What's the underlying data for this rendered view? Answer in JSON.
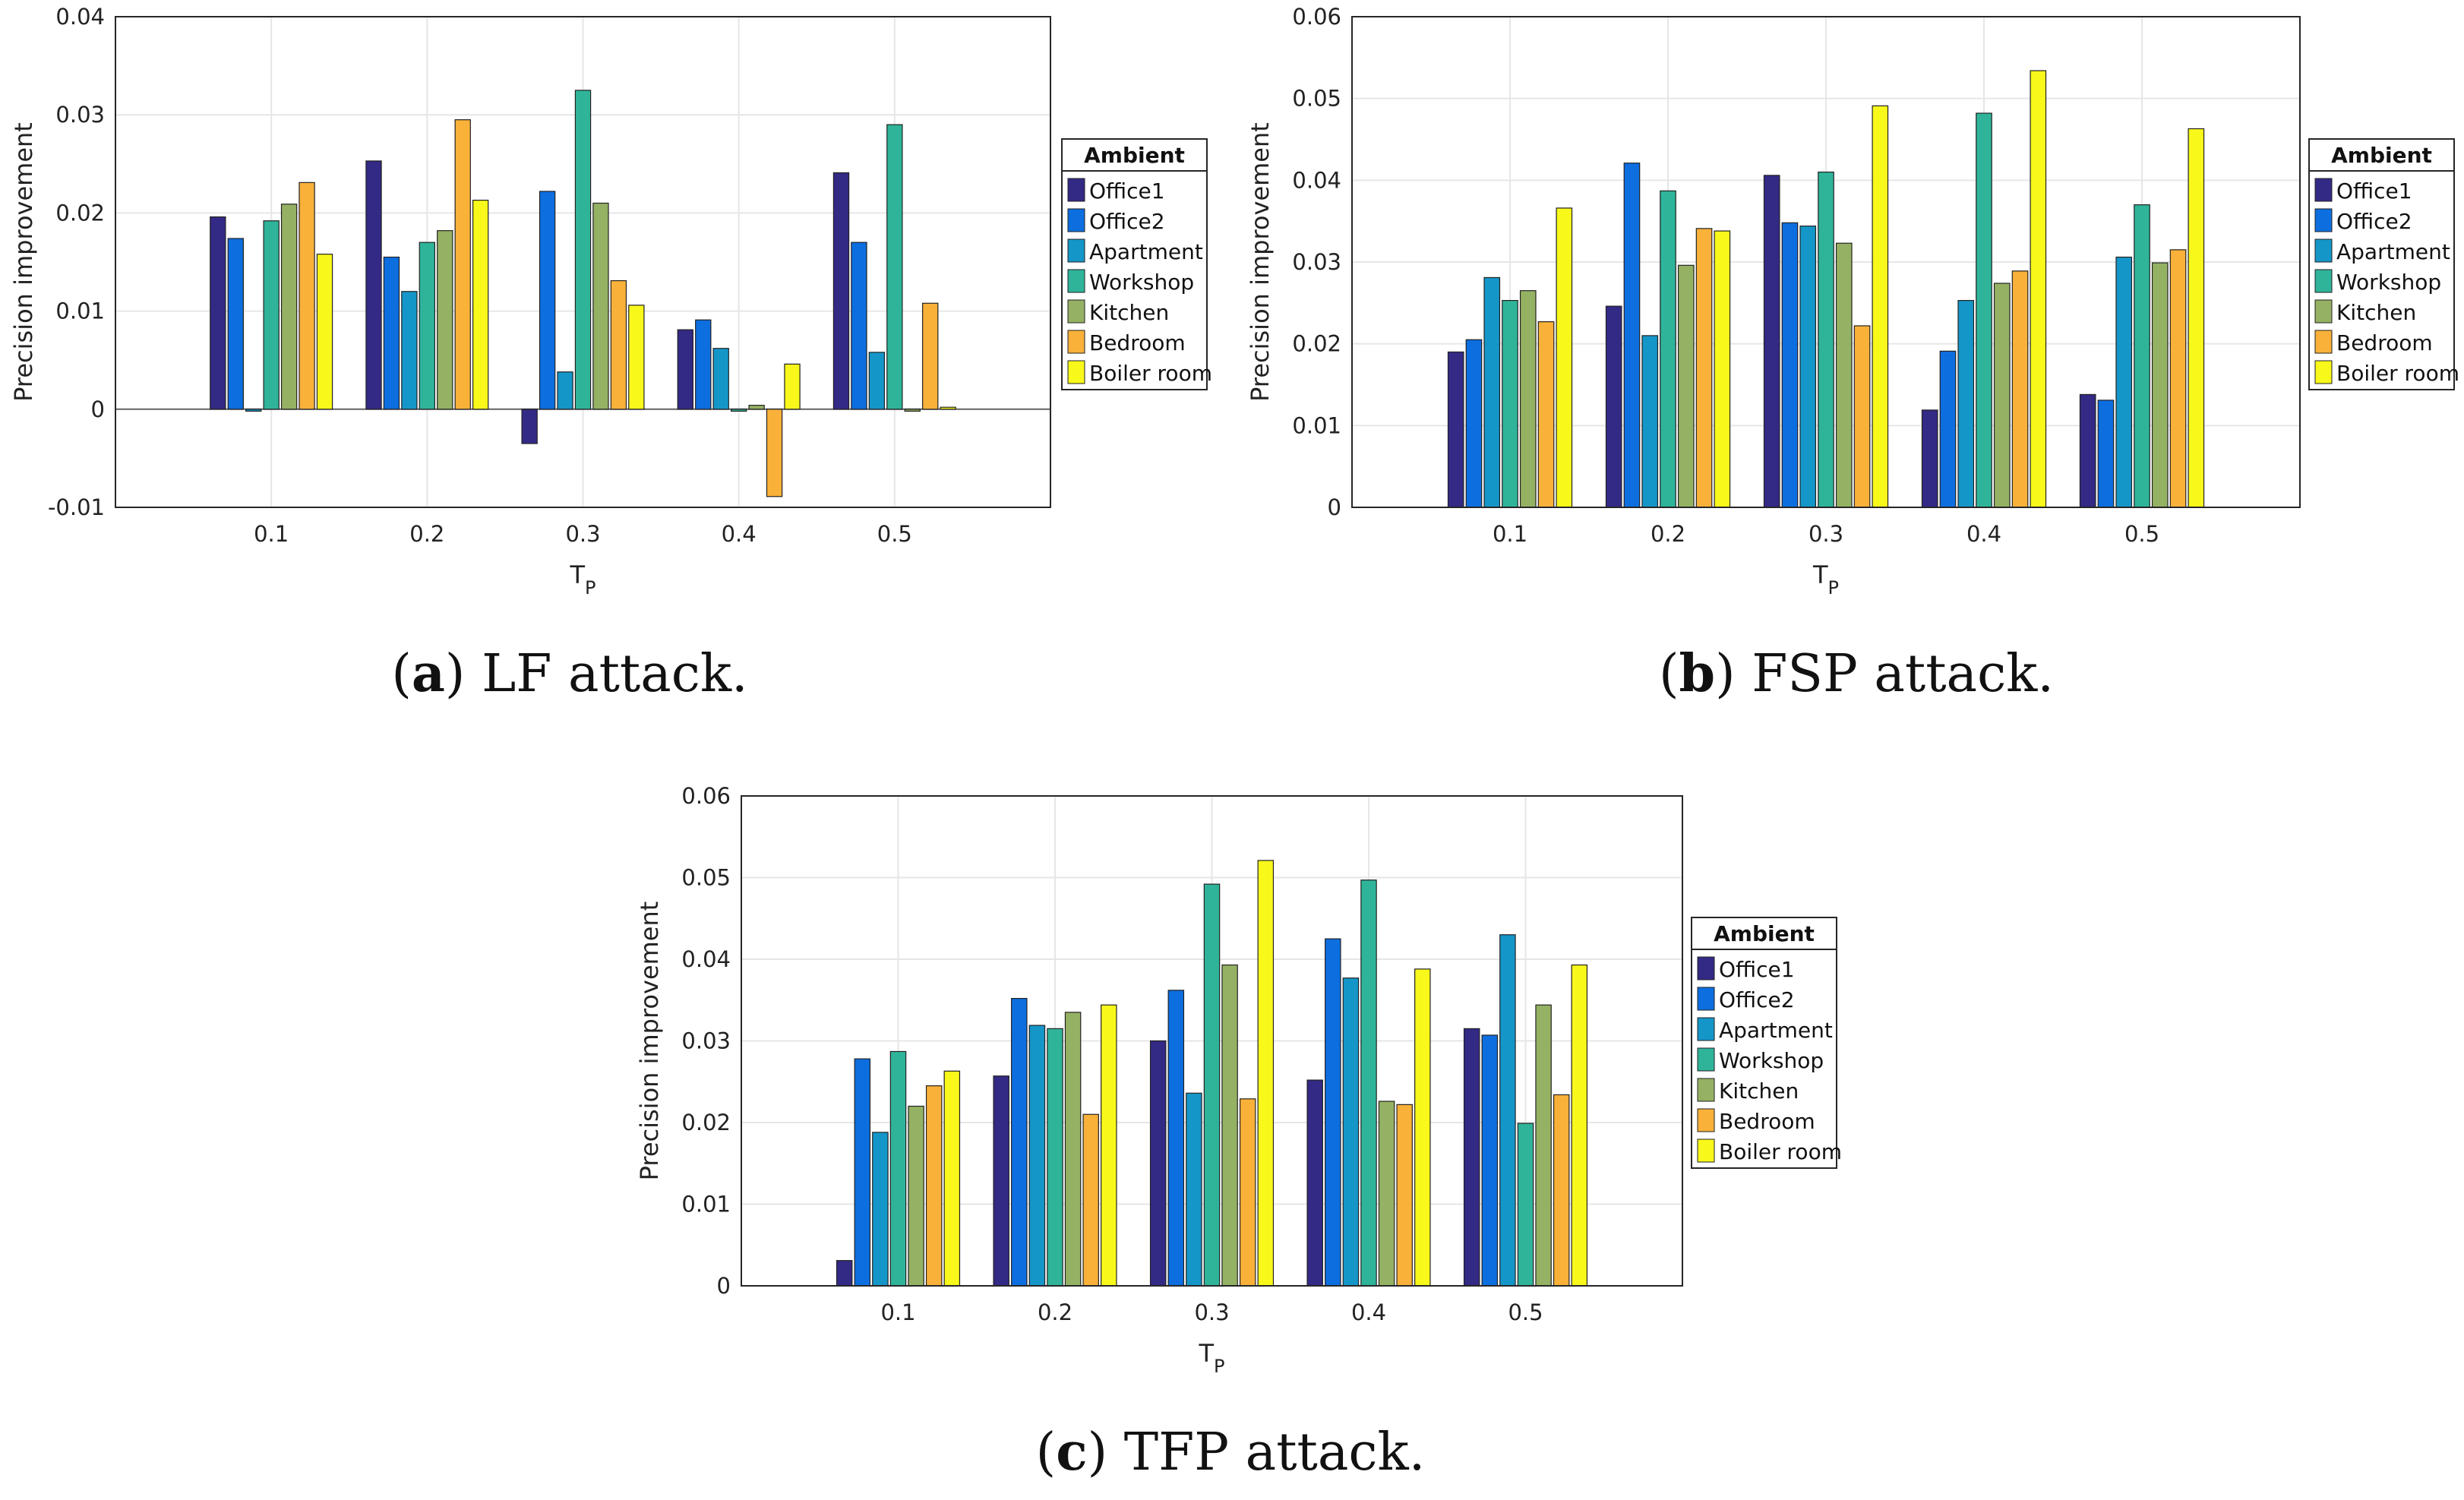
{
  "legend": {
    "title": "Ambient",
    "colors": [
      "#332a85",
      "#0d6ee0",
      "#1596c8",
      "#2fb49a",
      "#95b163",
      "#f9b13a",
      "#f8f81b"
    ]
  },
  "captions": [
    {
      "letter": "a",
      "text": "LF attack."
    },
    {
      "letter": "b",
      "text": "FSP attack."
    },
    {
      "letter": "c",
      "text": "TFP attack."
    }
  ],
  "chart_data": [
    {
      "type": "bar",
      "title": "",
      "xlabel": "T",
      "xlabel_subscript": "P",
      "ylabel": "Precision improvement",
      "categories": [
        "0.1",
        "0.2",
        "0.3",
        "0.4",
        "0.5"
      ],
      "ylim": [
        -0.01,
        0.04
      ],
      "yticks": [
        "-0.01",
        "0",
        "0.01",
        "0.02",
        "0.03",
        "0.04"
      ],
      "grid": true,
      "legend_position": "right",
      "series": [
        {
          "name": "Office1",
          "values": [
            0.0196,
            0.0253,
            -0.0035,
            0.0081,
            0.0241
          ]
        },
        {
          "name": "Office2",
          "values": [
            0.0174,
            0.0155,
            0.0222,
            0.0091,
            0.017
          ]
        },
        {
          "name": "Apartment",
          "values": [
            -0.0002,
            0.012,
            0.0038,
            0.0062,
            0.0058
          ]
        },
        {
          "name": "Workshop",
          "values": [
            0.0192,
            0.017,
            0.0325,
            -0.0002,
            0.029
          ]
        },
        {
          "name": "Kitchen",
          "values": [
            0.0209,
            0.0182,
            0.021,
            0.0004,
            -0.0002
          ]
        },
        {
          "name": "Bedroom",
          "values": [
            0.0231,
            0.0295,
            0.0131,
            -0.0089,
            0.0108
          ]
        },
        {
          "name": "Boiler room",
          "values": [
            0.0158,
            0.0213,
            0.0106,
            0.0046,
            0.0002
          ]
        }
      ]
    },
    {
      "type": "bar",
      "title": "",
      "xlabel": "T",
      "xlabel_subscript": "P",
      "ylabel": "Precision improvement",
      "categories": [
        "0.1",
        "0.2",
        "0.3",
        "0.4",
        "0.5"
      ],
      "ylim": [
        0,
        0.06
      ],
      "yticks": [
        "0",
        "0.01",
        "0.02",
        "0.03",
        "0.04",
        "0.05",
        "0.06"
      ],
      "grid": true,
      "legend_position": "right",
      "series": [
        {
          "name": "Office1",
          "values": [
            0.019,
            0.0246,
            0.0406,
            0.0119,
            0.0138
          ]
        },
        {
          "name": "Office2",
          "values": [
            0.0205,
            0.0421,
            0.0348,
            0.0191,
            0.0131
          ]
        },
        {
          "name": "Apartment",
          "values": [
            0.0281,
            0.021,
            0.0344,
            0.0253,
            0.0306
          ]
        },
        {
          "name": "Workshop",
          "values": [
            0.0253,
            0.0387,
            0.041,
            0.0482,
            0.037
          ]
        },
        {
          "name": "Kitchen",
          "values": [
            0.0265,
            0.0296,
            0.0323,
            0.0274,
            0.0299
          ]
        },
        {
          "name": "Bedroom",
          "values": [
            0.0227,
            0.0341,
            0.0222,
            0.0289,
            0.0315
          ]
        },
        {
          "name": "Boiler room",
          "values": [
            0.0366,
            0.0338,
            0.0491,
            0.0534,
            0.0463
          ]
        }
      ]
    },
    {
      "type": "bar",
      "title": "",
      "xlabel": "T",
      "xlabel_subscript": "P",
      "ylabel": "Precision improvement",
      "categories": [
        "0.1",
        "0.2",
        "0.3",
        "0.4",
        "0.5"
      ],
      "ylim": [
        0,
        0.06
      ],
      "yticks": [
        "0",
        "0.01",
        "0.02",
        "0.03",
        "0.04",
        "0.05",
        "0.06"
      ],
      "grid": true,
      "legend_position": "right",
      "series": [
        {
          "name": "Office1",
          "values": [
            0.0031,
            0.0257,
            0.03,
            0.0252,
            0.0315
          ]
        },
        {
          "name": "Office2",
          "values": [
            0.0278,
            0.0352,
            0.0362,
            0.0425,
            0.0307
          ]
        },
        {
          "name": "Apartment",
          "values": [
            0.0188,
            0.0319,
            0.0236,
            0.0377,
            0.043
          ]
        },
        {
          "name": "Workshop",
          "values": [
            0.0287,
            0.0315,
            0.0492,
            0.0497,
            0.0199
          ]
        },
        {
          "name": "Kitchen",
          "values": [
            0.022,
            0.0335,
            0.0393,
            0.0226,
            0.0344
          ]
        },
        {
          "name": "Bedroom",
          "values": [
            0.0245,
            0.021,
            0.0229,
            0.0222,
            0.0234
          ]
        },
        {
          "name": "Boiler room",
          "values": [
            0.0263,
            0.0344,
            0.0521,
            0.0388,
            0.0393
          ]
        }
      ]
    }
  ]
}
